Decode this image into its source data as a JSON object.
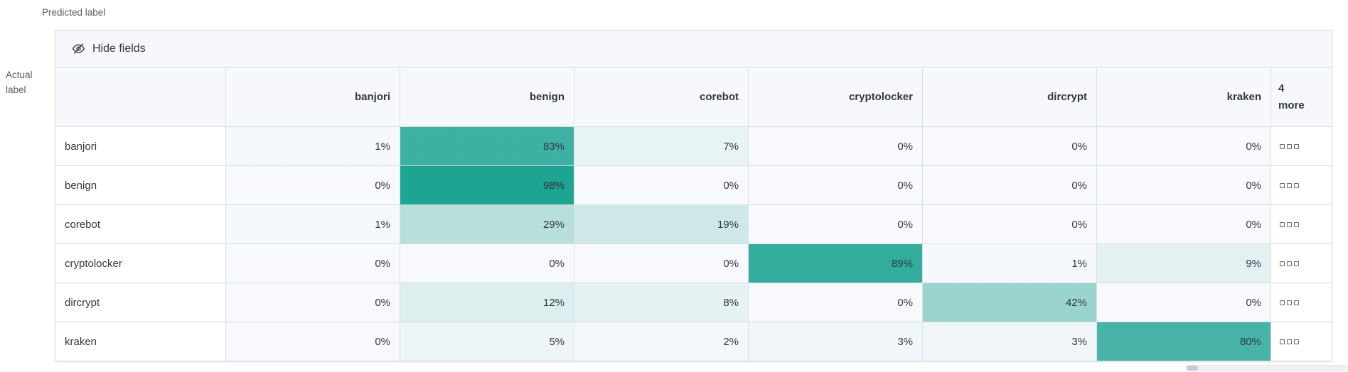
{
  "axes": {
    "predicted": "Predicted label",
    "actual_line1": "Actual",
    "actual_line2": "label"
  },
  "toolbar": {
    "hide_fields_label": "Hide fields"
  },
  "grid": {
    "columns": [
      "banjori",
      "benign",
      "corebot",
      "cryptolocker",
      "dircrypt",
      "kraken"
    ],
    "more_header": {
      "count": "4",
      "label": "more"
    },
    "rows": [
      {
        "label": "banjori",
        "cells": [
          "1%",
          "83%",
          "7%",
          "0%",
          "0%",
          "0%"
        ]
      },
      {
        "label": "benign",
        "cells": [
          "0%",
          "98%",
          "0%",
          "0%",
          "0%",
          "0%"
        ]
      },
      {
        "label": "corebot",
        "cells": [
          "1%",
          "29%",
          "19%",
          "0%",
          "0%",
          "0%"
        ]
      },
      {
        "label": "cryptolocker",
        "cells": [
          "0%",
          "0%",
          "0%",
          "89%",
          "1%",
          "9%"
        ]
      },
      {
        "label": "dircrypt",
        "cells": [
          "0%",
          "12%",
          "8%",
          "0%",
          "42%",
          "0%"
        ]
      },
      {
        "label": "kraken",
        "cells": [
          "0%",
          "5%",
          "2%",
          "3%",
          "3%",
          "80%"
        ]
      }
    ]
  },
  "colors": {
    "heatmap_base_rgb": "25,162,145",
    "cell_base_bg": "#f8f9fc",
    "header_bg": "#f6f8fb",
    "border": "#d3dae6",
    "text": "#343741",
    "muted_text": "#545c68"
  }
}
